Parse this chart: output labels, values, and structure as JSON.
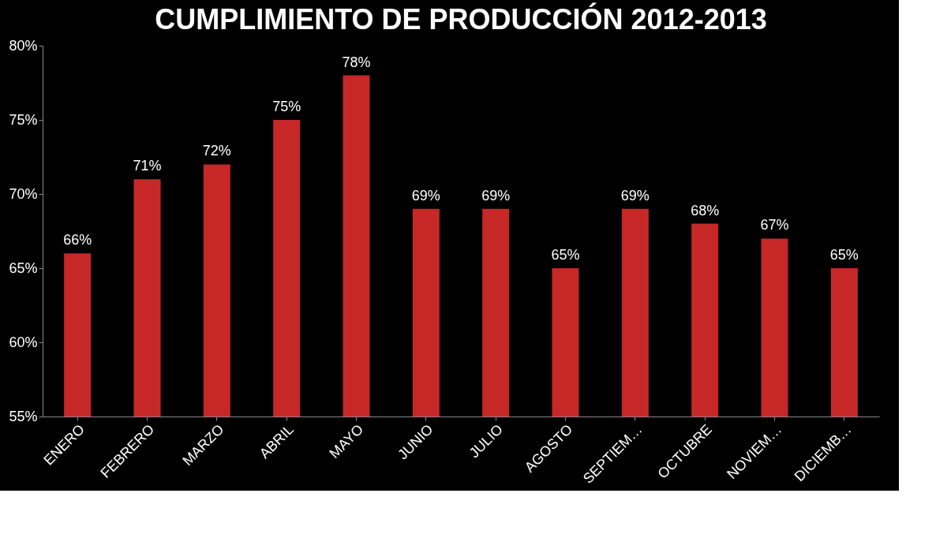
{
  "chart_data": {
    "type": "bar",
    "title": "CUMPLIMIENTO DE PRODUCCIÓN 2012-2013",
    "categories": [
      "ENERO",
      "FEBRERO",
      "MARZO",
      "ABRIL",
      "MAYO",
      "JUNIO",
      "JULIO",
      "AGOSTO",
      "SEPTIEM…",
      "OCTUBRE",
      "NOVIEM…",
      "DICIEMB…"
    ],
    "values": [
      66,
      71,
      72,
      75,
      78,
      69,
      69,
      65,
      69,
      68,
      67,
      65
    ],
    "value_labels": [
      "66%",
      "71%",
      "72%",
      "75%",
      "78%",
      "69%",
      "69%",
      "65%",
      "69%",
      "68%",
      "67%",
      "65%"
    ],
    "color": "#c62828",
    "ylim": [
      55,
      80
    ],
    "yticks": [
      {
        "value": 55,
        "label": "55%"
      },
      {
        "value": 60,
        "label": "60%"
      },
      {
        "value": 65,
        "label": "65%"
      },
      {
        "value": 70,
        "label": "70%"
      },
      {
        "value": 75,
        "label": "75%"
      },
      {
        "value": 80,
        "label": "80%"
      }
    ],
    "grid": false
  }
}
